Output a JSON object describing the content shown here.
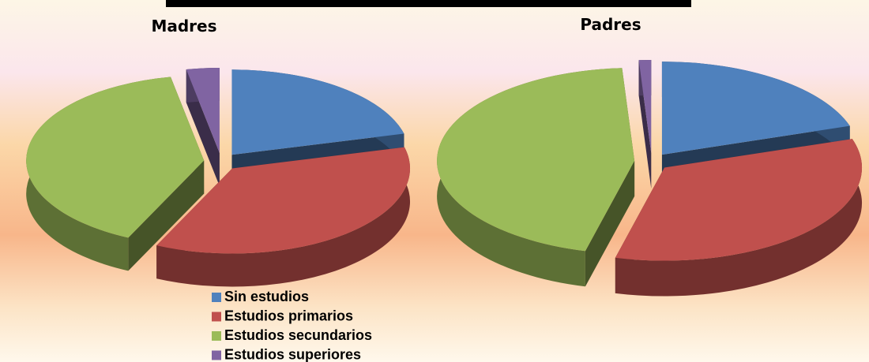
{
  "chart_data": [
    {
      "type": "pie",
      "title": "Madres",
      "categories": [
        "Sin estudios",
        "Estudios primarios",
        "Estudios secundarios",
        "Estudios superiores"
      ],
      "values": [
        21,
        36,
        40,
        3
      ],
      "colors": [
        "#4f81bd",
        "#c0504d",
        "#9bbb59",
        "#8064a2"
      ]
    },
    {
      "type": "pie",
      "title": "Padres",
      "categories": [
        "Sin estudios",
        "Estudios primarios",
        "Estudios secundarios",
        "Estudios superiores"
      ],
      "values": [
        20,
        34,
        45,
        1
      ],
      "colors": [
        "#4f81bd",
        "#c0504d",
        "#9bbb59",
        "#8064a2"
      ]
    }
  ]
}
